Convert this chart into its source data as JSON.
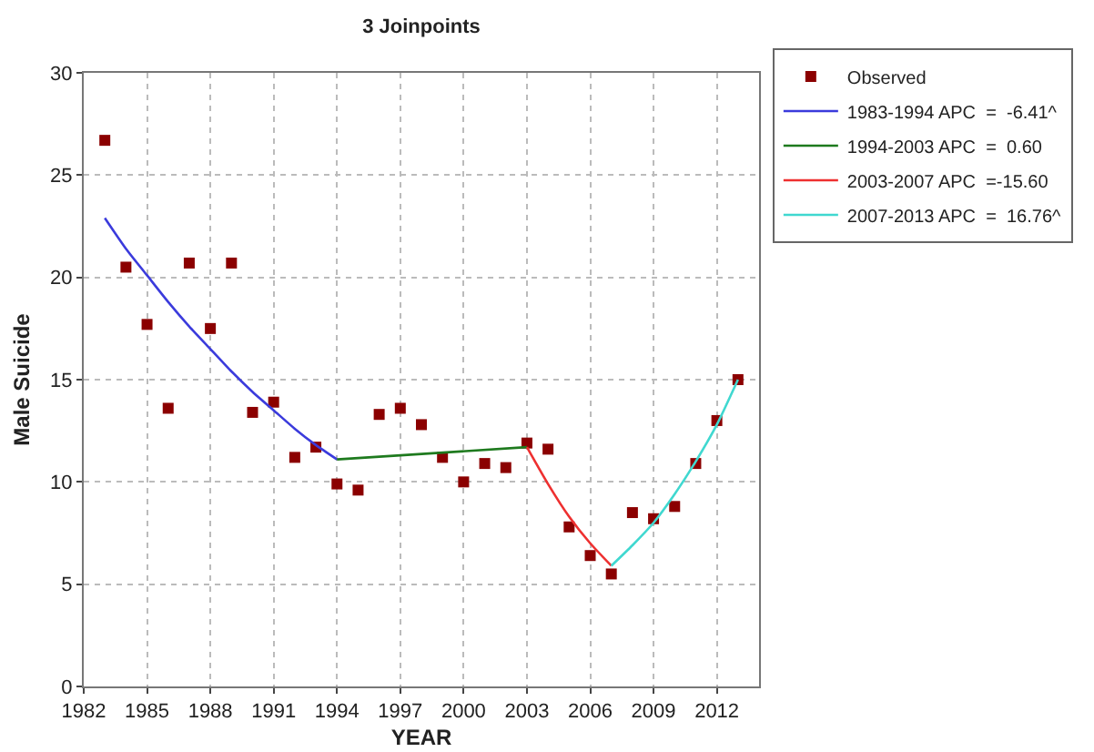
{
  "chart_data": {
    "type": "scatter",
    "title": "3 Joinpoints",
    "xlabel": "YEAR",
    "ylabel": "Male Suicide",
    "xlim": [
      1982,
      2014
    ],
    "xticks": [
      1982,
      1985,
      1988,
      1991,
      1994,
      1997,
      2000,
      2003,
      2006,
      2009,
      2012
    ],
    "ylim": [
      0,
      30
    ],
    "yticks": [
      0,
      5,
      10,
      15,
      20,
      25,
      30
    ],
    "grid": true,
    "legend": "top right",
    "series": [
      {
        "name": "Observed",
        "marker": "square",
        "color": "#8b0000",
        "x": [
          1983,
          1984,
          1985,
          1986,
          1987,
          1988,
          1989,
          1990,
          1991,
          1992,
          1993,
          1994,
          1995,
          1996,
          1997,
          1998,
          1999,
          2000,
          2001,
          2002,
          2003,
          2004,
          2005,
          2006,
          2007,
          2008,
          2009,
          2010,
          2011,
          2012,
          2013
        ],
        "values": [
          26.7,
          20.5,
          17.7,
          13.6,
          20.7,
          17.5,
          20.7,
          13.4,
          13.9,
          11.2,
          11.7,
          9.9,
          9.6,
          13.3,
          13.6,
          12.8,
          11.2,
          10.0,
          10.9,
          10.7,
          11.9,
          11.6,
          7.8,
          6.4,
          5.5,
          8.5,
          8.2,
          8.8,
          10.9,
          13.0,
          15.0
        ]
      },
      {
        "name": "1983-1994 APC  =  -6.41^",
        "type": "line",
        "marker": "none",
        "color": "#3b3bdc",
        "x": [
          1983,
          1984,
          1985,
          1986,
          1987,
          1988,
          1989,
          1990,
          1991,
          1992,
          1993,
          1994
        ],
        "values": [
          22.9,
          21.4,
          20.1,
          18.8,
          17.6,
          16.5,
          15.4,
          14.4,
          13.5,
          12.6,
          11.8,
          11.1
        ]
      },
      {
        "name": "1994-2003 APC  =  0.60",
        "type": "line",
        "marker": "none",
        "color": "#1e7a1e",
        "x": [
          1994,
          2003
        ],
        "values": [
          11.1,
          11.7
        ]
      },
      {
        "name": "2003-2007 APC  =-15.60",
        "type": "line",
        "marker": "none",
        "color": "#ee3030",
        "x": [
          2003,
          2004,
          2005,
          2006,
          2007
        ],
        "values": [
          11.7,
          9.9,
          8.3,
          7.0,
          5.9
        ]
      },
      {
        "name": "2007-2013 APC  =  16.76^",
        "type": "line",
        "marker": "none",
        "color": "#40d8d0",
        "x": [
          2007,
          2008,
          2009,
          2010,
          2011,
          2012,
          2013
        ],
        "values": [
          5.9,
          6.9,
          8.0,
          9.4,
          11.0,
          12.8,
          15.0
        ]
      }
    ]
  }
}
